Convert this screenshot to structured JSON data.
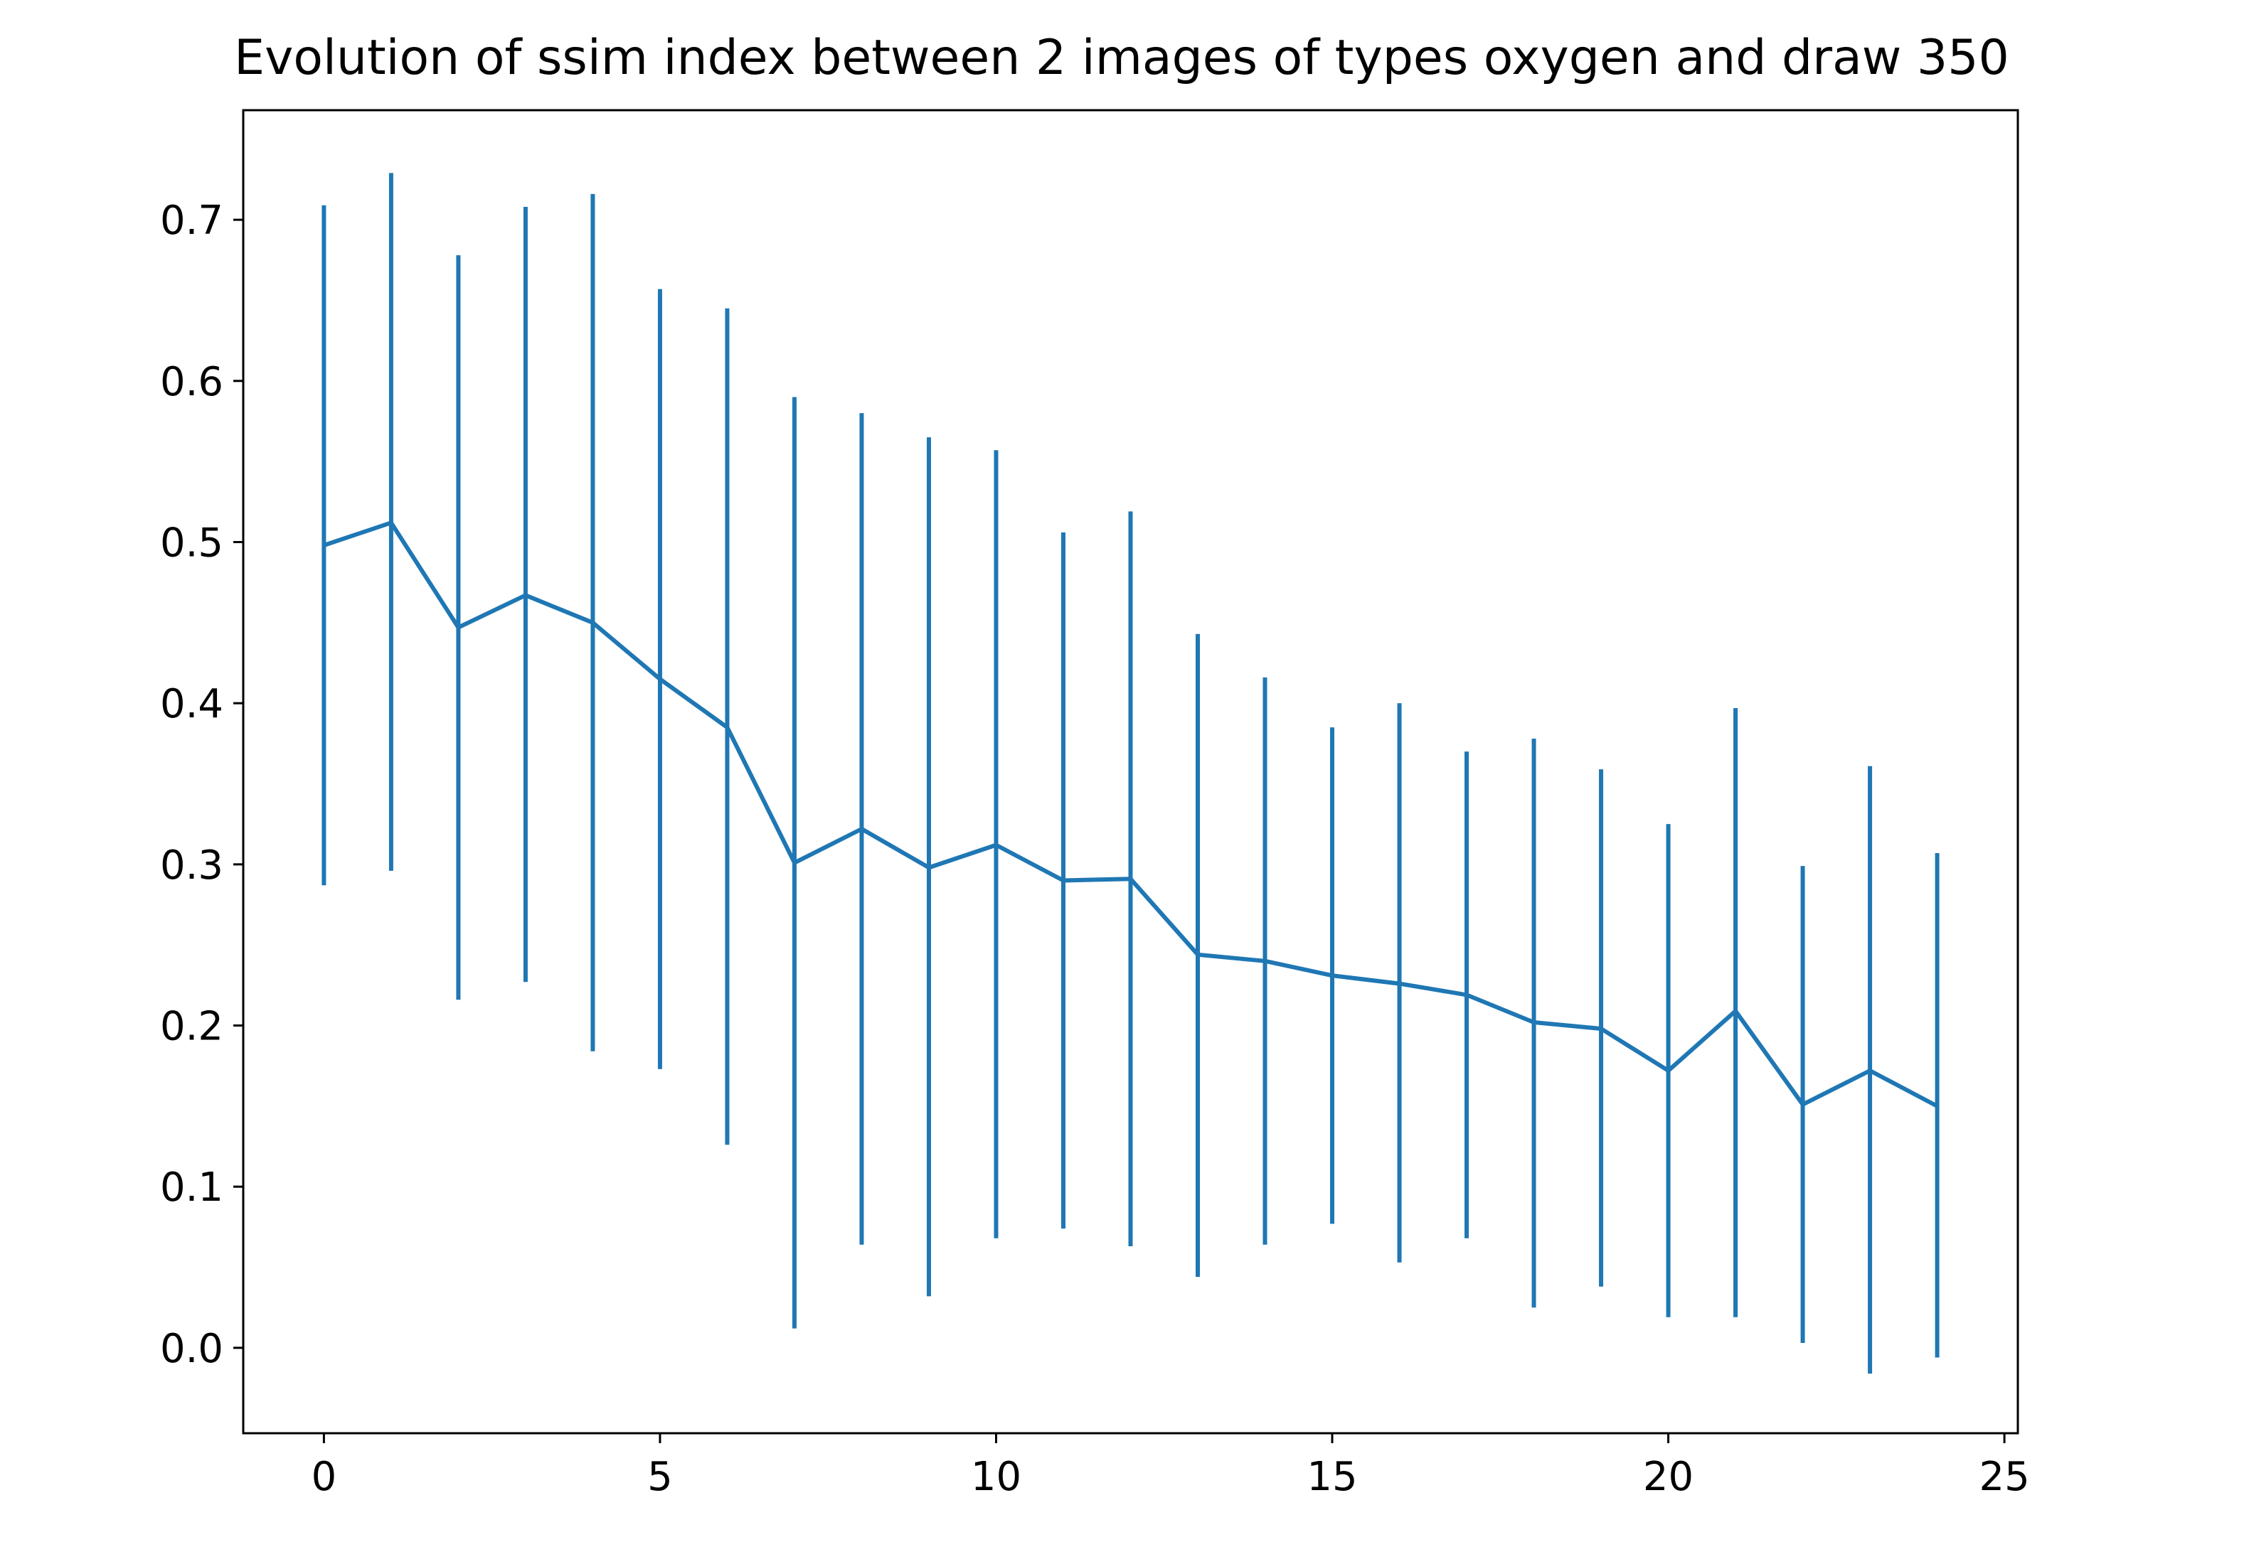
{
  "chart_data": {
    "type": "line",
    "title": "Evolution of ssim index between 2 images of types oxygen and draw 350",
    "xlabel": "",
    "ylabel": "",
    "xlim": [
      -1.2,
      25.2
    ],
    "ylim": [
      -0.053,
      0.768
    ],
    "xticks": [
      0,
      5,
      10,
      15,
      20,
      25
    ],
    "xtick_labels": [
      "0",
      "5",
      "10",
      "15",
      "20",
      "25"
    ],
    "yticks": [
      0.0,
      0.1,
      0.2,
      0.3,
      0.4,
      0.5,
      0.6,
      0.7
    ],
    "ytick_labels": [
      "0.0",
      "0.1",
      "0.2",
      "0.3",
      "0.4",
      "0.5",
      "0.6",
      "0.7"
    ],
    "grid": false,
    "color": "#1f77b4",
    "series": [
      {
        "x": [
          0,
          1,
          2,
          3,
          4,
          5,
          6,
          7,
          8,
          9,
          10,
          11,
          12,
          13,
          14,
          15,
          16,
          17,
          18,
          19,
          20,
          21,
          22,
          23,
          24
        ],
        "y": [
          0.498,
          0.512,
          0.447,
          0.467,
          0.45,
          0.415,
          0.385,
          0.301,
          0.322,
          0.298,
          0.312,
          0.29,
          0.291,
          0.244,
          0.24,
          0.231,
          0.226,
          0.219,
          0.202,
          0.198,
          0.172,
          0.209,
          0.151,
          0.172,
          0.15
        ],
        "err_upper": [
          0.709,
          0.729,
          0.678,
          0.708,
          0.716,
          0.657,
          0.645,
          0.59,
          0.58,
          0.565,
          0.557,
          0.506,
          0.519,
          0.443,
          0.416,
          0.385,
          0.4,
          0.37,
          0.378,
          0.359,
          0.325,
          0.397,
          0.299,
          0.361,
          0.307
        ],
        "err_lower": [
          0.287,
          0.296,
          0.216,
          0.227,
          0.184,
          0.173,
          0.126,
          0.012,
          0.064,
          0.032,
          0.068,
          0.074,
          0.063,
          0.044,
          0.064,
          0.077,
          0.053,
          0.068,
          0.025,
          0.038,
          0.019,
          0.019,
          0.003,
          -0.016,
          -0.006
        ]
      }
    ]
  }
}
